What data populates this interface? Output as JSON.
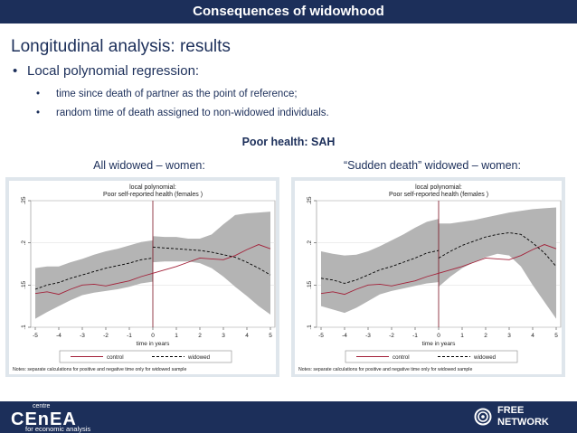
{
  "slide": {
    "title": "Consequences of widowhood",
    "heading": "Longitudinal analysis: results",
    "bullet_main": "Local polynomial regression:",
    "bullet_subs": [
      "time since death of partner as the point of reference;",
      "random time of death assigned to non-widowed individuals."
    ],
    "center_title": "Poor health: SAH",
    "panel_titles": [
      "All widowed – women:",
      "“Sudden death” widowed – women:"
    ]
  },
  "footer": {
    "left_logo_small": "centre",
    "left_logo_big": "CEnEA",
    "left_logo_sub": "for economic analysis",
    "right_logo_line1": "FREE",
    "right_logo_line2": "NETWORK"
  },
  "colors": {
    "navy": "#1c2f5a",
    "band": "#b4b4b4",
    "control": "#a3223a",
    "widowed": "#000000",
    "vline": "#7a1020"
  },
  "chart_data": [
    {
      "type": "line",
      "title": "local polynomial:",
      "subtitle": "Poor self-reported health (females )",
      "xlabel": "time in years",
      "ylabel": "",
      "xlim": [
        -5,
        5
      ],
      "ylim": [
        0.1,
        0.25
      ],
      "xticks": [
        "-5",
        "-4",
        "-3",
        "-2",
        "-1",
        "0",
        "1",
        "2",
        "3",
        "4",
        "5"
      ],
      "yticks": [
        ".1",
        ".15",
        ".2",
        ".25"
      ],
      "ytick_values": [
        0.1,
        0.15,
        0.2,
        0.25
      ],
      "legend": [
        "control",
        "widowed"
      ],
      "note": "Notes: separate calculations for positive and negative time only for widowed sample",
      "vline_x": 0,
      "x": [
        -5,
        -4.5,
        -4,
        -3.5,
        -3,
        -2.5,
        -2,
        -1.5,
        -1,
        -0.5,
        0,
        0.5,
        1,
        1.5,
        2,
        2.5,
        3,
        3.5,
        4,
        4.5,
        5
      ],
      "series": [
        {
          "name": "control",
          "values": [
            0.14,
            0.142,
            0.139,
            0.145,
            0.15,
            0.151,
            0.149,
            0.152,
            0.155,
            0.16,
            0.164,
            0.168,
            0.172,
            0.177,
            0.182,
            0.181,
            0.18,
            0.185,
            0.192,
            0.198,
            0.193
          ]
        },
        {
          "name": "widowed",
          "values": [
            0.145,
            0.15,
            0.153,
            0.158,
            0.162,
            0.166,
            0.17,
            0.173,
            0.176,
            0.18,
            0.195,
            0.194,
            0.193,
            0.192,
            0.191,
            0.189,
            0.186,
            0.183,
            0.177,
            0.17,
            0.162
          ]
        }
      ],
      "band": {
        "upper": [
          0.17,
          0.172,
          0.172,
          0.177,
          0.181,
          0.186,
          0.19,
          0.193,
          0.197,
          0.201,
          0.208,
          0.207,
          0.207,
          0.205,
          0.205,
          0.21,
          0.222,
          0.233,
          0.235,
          0.236,
          0.237
        ],
        "lower": [
          0.11,
          0.118,
          0.125,
          0.132,
          0.138,
          0.141,
          0.143,
          0.145,
          0.148,
          0.152,
          0.177,
          0.178,
          0.178,
          0.178,
          0.176,
          0.17,
          0.16,
          0.148,
          0.137,
          0.125,
          0.115
        ]
      }
    },
    {
      "type": "line",
      "title": "local polynomial:",
      "subtitle": "Poor self-reported health (females )",
      "xlabel": "time in years",
      "ylabel": "",
      "xlim": [
        -5,
        5
      ],
      "ylim": [
        0.1,
        0.25
      ],
      "xticks": [
        "-5",
        "-4",
        "-3",
        "-2",
        "-1",
        "0",
        "1",
        "2",
        "3",
        "4",
        "5"
      ],
      "yticks": [
        ".1",
        ".15",
        ".2",
        ".25"
      ],
      "ytick_values": [
        0.1,
        0.15,
        0.2,
        0.25
      ],
      "legend": [
        "control",
        "widowed"
      ],
      "note": "Notes: separate calculations for positive and negative time only for widowed sample",
      "vline_x": 0,
      "x": [
        -5,
        -4.5,
        -4,
        -3.5,
        -3,
        -2.5,
        -2,
        -1.5,
        -1,
        -0.5,
        0,
        0.5,
        1,
        1.5,
        2,
        2.5,
        3,
        3.5,
        4,
        4.5,
        5
      ],
      "series": [
        {
          "name": "control",
          "values": [
            0.14,
            0.142,
            0.139,
            0.145,
            0.15,
            0.151,
            0.149,
            0.152,
            0.155,
            0.16,
            0.164,
            0.168,
            0.172,
            0.177,
            0.182,
            0.181,
            0.18,
            0.185,
            0.192,
            0.198,
            0.193
          ]
        },
        {
          "name": "widowed",
          "values": [
            0.158,
            0.156,
            0.152,
            0.156,
            0.162,
            0.168,
            0.172,
            0.177,
            0.182,
            0.188,
            0.182,
            0.19,
            0.197,
            0.202,
            0.207,
            0.21,
            0.212,
            0.21,
            0.2,
            0.188,
            0.172
          ]
        }
      ],
      "band": {
        "upper": [
          0.19,
          0.187,
          0.185,
          0.186,
          0.19,
          0.196,
          0.203,
          0.21,
          0.218,
          0.225,
          0.223,
          0.223,
          0.225,
          0.227,
          0.23,
          0.233,
          0.236,
          0.238,
          0.24,
          0.241,
          0.242
        ],
        "lower": [
          0.125,
          0.121,
          0.117,
          0.123,
          0.131,
          0.139,
          0.143,
          0.146,
          0.149,
          0.152,
          0.148,
          0.16,
          0.17,
          0.177,
          0.183,
          0.187,
          0.185,
          0.172,
          0.15,
          0.13,
          0.11
        ]
      }
    }
  ]
}
